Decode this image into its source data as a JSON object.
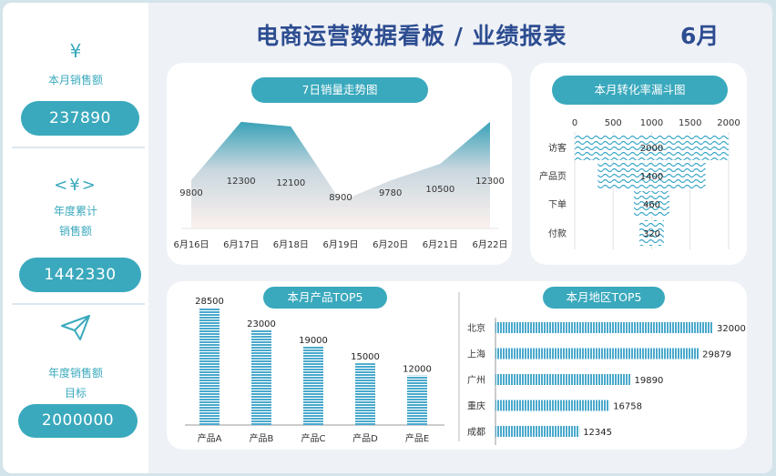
{
  "header": {
    "title": "电商运营数据看板 / 业绩报表",
    "month": "6月"
  },
  "kpis": [
    {
      "icon": "¥",
      "label": "本月销售额",
      "value": "237890"
    },
    {
      "icon": "<¥>",
      "label_line1": "年度累计",
      "label_line2": "销售额",
      "value": "1442330"
    },
    {
      "icon": "paper-plane-icon",
      "label_line1": "年度销售额",
      "label_line2": "目标",
      "value": "2000000"
    }
  ],
  "colors": {
    "accent": "#3aa9bd",
    "title": "#2d4d91",
    "bar": "#4aa9cc"
  },
  "trend": {
    "title": "7日销量走势图",
    "chart_data": {
      "type": "area",
      "categories": [
        "6月16日",
        "6月17日",
        "6月18日",
        "6月19日",
        "6月20日",
        "6月21日",
        "6月22日"
      ],
      "values": [
        9800,
        12300,
        12100,
        8900,
        9780,
        10500,
        12300
      ],
      "title": "7日销量走势图"
    }
  },
  "funnel": {
    "title": "本月转化率漏斗图",
    "chart_data": {
      "type": "bar",
      "orientation": "horizontal-funnel",
      "categories": [
        "访客",
        "产品页",
        "下单",
        "付款"
      ],
      "values": [
        2000,
        1400,
        460,
        320
      ],
      "xticks": [
        "0",
        "500",
        "1000",
        "1500",
        "2000"
      ],
      "xlim": [
        0,
        2000
      ],
      "title": "本月转化率漏斗图"
    }
  },
  "products": {
    "title": "本月产品TOP5",
    "chart_data": {
      "type": "bar",
      "categories": [
        "产品A",
        "产品B",
        "产品C",
        "产品D",
        "产品E"
      ],
      "values": [
        28500,
        23000,
        19000,
        15000,
        12000
      ],
      "ylim": [
        0,
        28500
      ],
      "title": "本月产品TOP5"
    }
  },
  "regions": {
    "title": "本月地区TOP5",
    "chart_data": {
      "type": "bar",
      "orientation": "horizontal",
      "categories": [
        "北京",
        "上海",
        "广州",
        "重庆",
        "成都"
      ],
      "values": [
        32000,
        29879,
        19890,
        16758,
        12345
      ],
      "xlim": [
        0,
        32000
      ],
      "title": "本月地区TOP5"
    }
  }
}
